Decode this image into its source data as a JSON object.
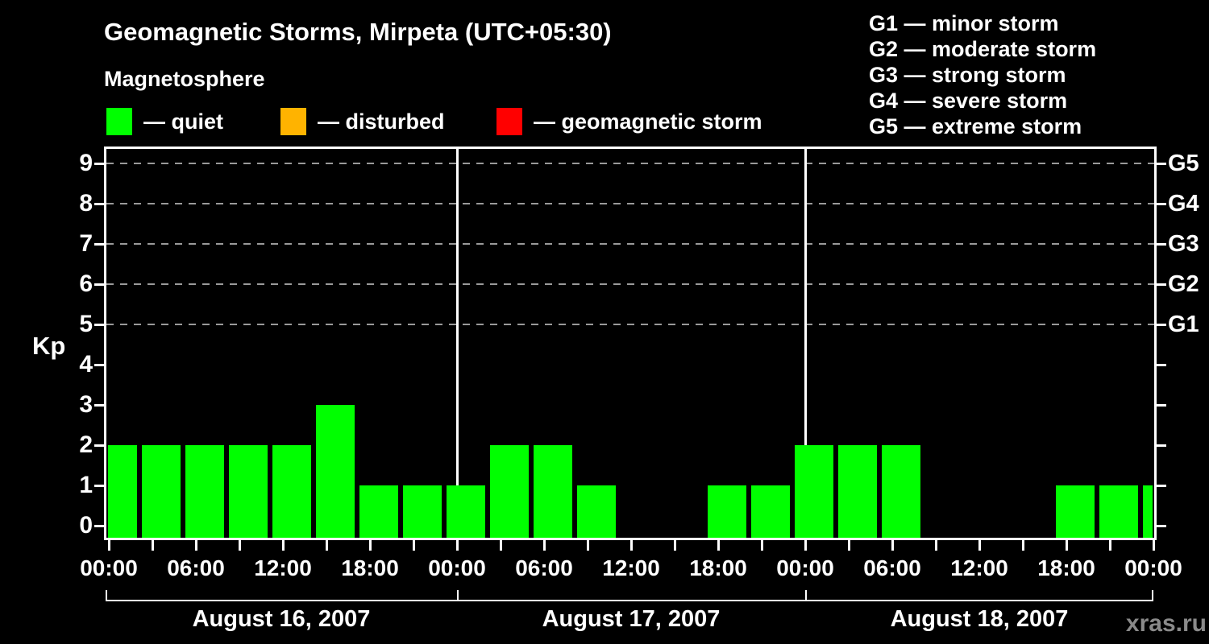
{
  "title": "Geomagnetic Storms, Mirpeta (UTC+05:30)",
  "subtitle": "Magnetosphere",
  "legend": {
    "items": [
      {
        "label": "— quiet",
        "color": "#00ff00"
      },
      {
        "label": "— disturbed",
        "color": "#ffb300"
      },
      {
        "label": "— geomagnetic storm",
        "color": "#ff0000"
      }
    ]
  },
  "g_scale_legend": [
    "G1 — minor storm",
    "G2 — moderate storm",
    "G3 — strong storm",
    "G4 — severe storm",
    "G5 — extreme storm"
  ],
  "watermark": "xras.ru",
  "chart_data": {
    "type": "bar",
    "title": "Geomagnetic Storms, Mirpeta (UTC+05:30)",
    "subtitle": "Magnetosphere",
    "ylabel": "Kp",
    "ylim": [
      0,
      9
    ],
    "yticks": [
      0,
      1,
      2,
      3,
      4,
      5,
      6,
      7,
      8,
      9
    ],
    "grid_levels": [
      5,
      6,
      7,
      8,
      9
    ],
    "right_axis": {
      "labels": [
        "G5",
        "G4",
        "G3",
        "G2",
        "G1"
      ],
      "levels": [
        9,
        8,
        7,
        6,
        5
      ]
    },
    "x_tick_labels": [
      "00:00",
      "06:00",
      "12:00",
      "18:00",
      "00:00",
      "06:00",
      "12:00",
      "18:00",
      "00:00",
      "06:00",
      "12:00",
      "18:00",
      "00:00"
    ],
    "days": [
      {
        "date": "August 16, 2007",
        "kp": [
          2,
          2,
          2,
          2,
          2,
          3,
          1,
          1
        ]
      },
      {
        "date": "August 17, 2007",
        "kp": [
          1,
          2,
          2,
          1,
          0,
          0,
          1,
          1
        ]
      },
      {
        "date": "August 18, 2007",
        "kp": [
          2,
          2,
          2,
          0,
          0,
          0,
          1,
          1
        ]
      }
    ],
    "trailing_partial_bar_kp": 1,
    "bar_color": "#00ff00",
    "legend_position": "top"
  }
}
